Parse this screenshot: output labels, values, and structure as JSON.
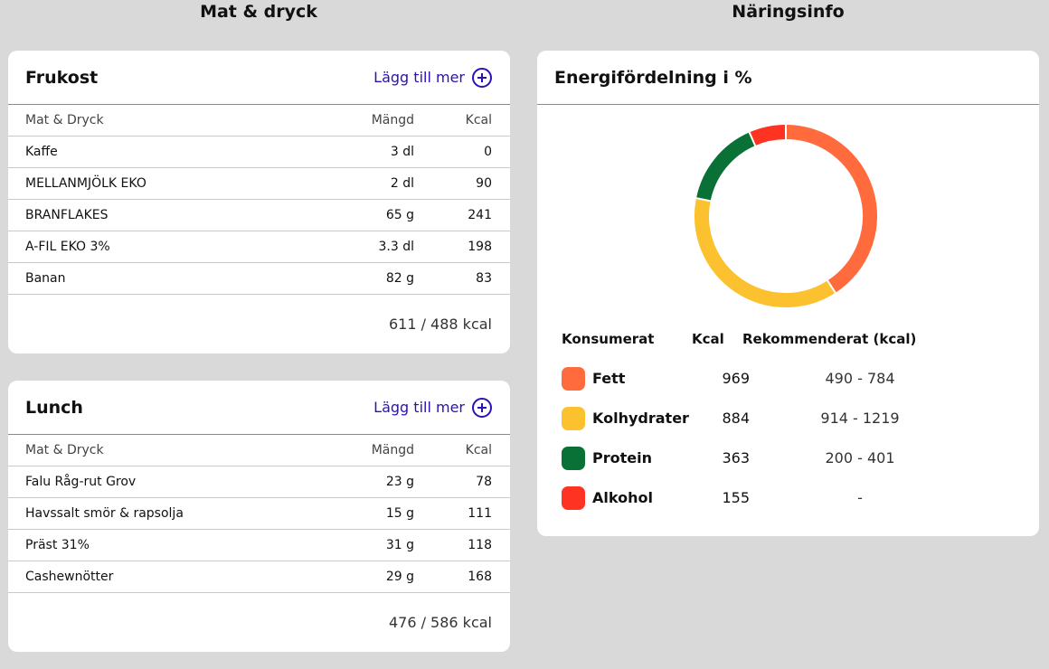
{
  "headers": {
    "left": "Mat & dryck",
    "right": "Näringsinfo"
  },
  "meals": [
    {
      "title": "Frukost",
      "add_label": "Lägg till mer",
      "columns": {
        "name": "Mat & Dryck",
        "qty": "Mängd",
        "kcal": "Kcal"
      },
      "rows": [
        {
          "name": "Kaffe",
          "qty": "3 dl",
          "kcal": "0"
        },
        {
          "name": "MELLANMJÖLK EKO",
          "qty": "2 dl",
          "kcal": "90"
        },
        {
          "name": "BRANFLAKES",
          "qty": "65 g",
          "kcal": "241"
        },
        {
          "name": "A-FIL EKO 3%",
          "qty": "3.3 dl",
          "kcal": "198"
        },
        {
          "name": "Banan",
          "qty": "82 g",
          "kcal": "83"
        }
      ],
      "total": "611 / 488 kcal"
    },
    {
      "title": "Lunch",
      "add_label": "Lägg till mer",
      "columns": {
        "name": "Mat & Dryck",
        "qty": "Mängd",
        "kcal": "Kcal"
      },
      "rows": [
        {
          "name": "Falu Råg-rut Grov",
          "qty": "23 g",
          "kcal": "78"
        },
        {
          "name": "Havssalt smör & rapsolja",
          "qty": "15 g",
          "kcal": "111"
        },
        {
          "name": "Präst 31%",
          "qty": "31 g",
          "kcal": "118"
        },
        {
          "name": "Cashewnötter",
          "qty": "29 g",
          "kcal": "168"
        }
      ],
      "total": "476 / 586 kcal"
    }
  ],
  "energy": {
    "title": "Energifördelning i %",
    "columns": {
      "consumed": "Konsumerat",
      "kcal": "Kcal",
      "recommended": "Rekommenderat (kcal)"
    },
    "items": [
      {
        "name": "Fett",
        "kcal": "969",
        "recommended": "490 - 784",
        "color": "#ff6b3d"
      },
      {
        "name": "Kolhydrater",
        "kcal": "884",
        "recommended": "914 - 1219",
        "color": "#fcc12f"
      },
      {
        "name": "Protein",
        "kcal": "363",
        "recommended": "200 - 401",
        "color": "#0a7136"
      },
      {
        "name": "Alkohol",
        "kcal": "155",
        "recommended": "-",
        "color": "#ff3322"
      }
    ]
  },
  "chart_data": {
    "type": "pie",
    "categories": [
      "Fett",
      "Kolhydrater",
      "Protein",
      "Alkohol"
    ],
    "values": [
      969,
      884,
      363,
      155
    ],
    "colors": [
      "#ff6b3d",
      "#fcc12f",
      "#0a7136",
      "#ff3322"
    ],
    "title": "Energifördelning i %"
  }
}
